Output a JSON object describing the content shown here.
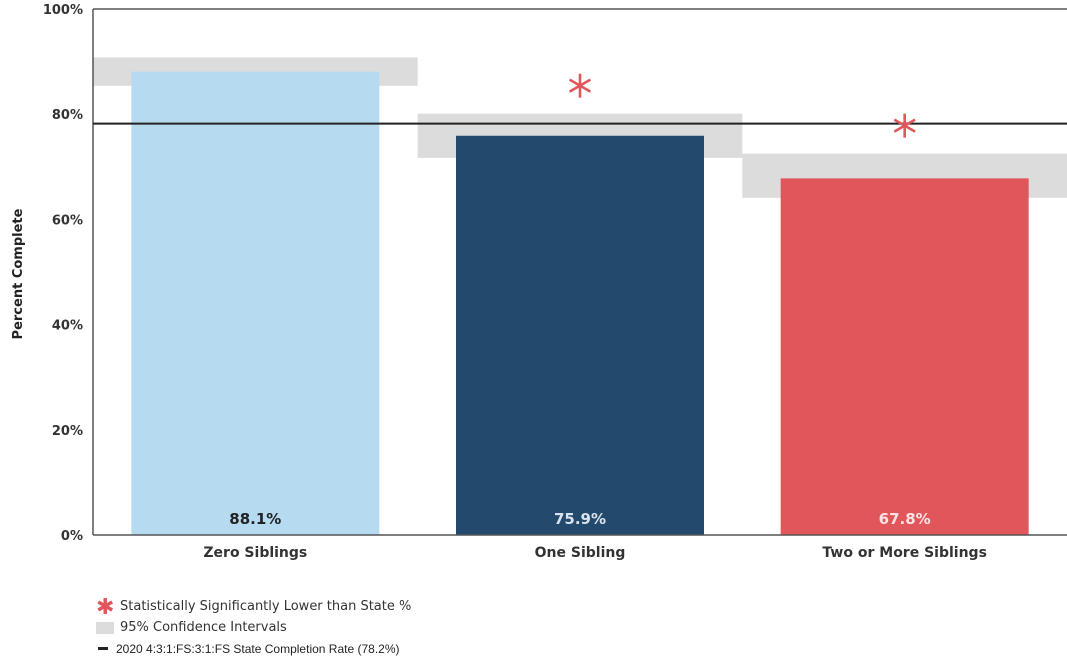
{
  "chart_data": {
    "type": "bar",
    "title": "",
    "xlabel": "",
    "ylabel": "Percent Complete",
    "ylim": [
      0,
      100
    ],
    "yticks": [
      "0%",
      "20%",
      "40%",
      "60%",
      "80%",
      "100%"
    ],
    "categories": [
      "Zero Siblings",
      "One Sibling",
      "Two or More Siblings"
    ],
    "values": [
      88.1,
      75.9,
      67.8
    ],
    "value_labels": [
      "88.1%",
      "75.9%",
      "67.8%"
    ],
    "colors": [
      "#b6dbf0",
      "#234a6c",
      "#e0565b"
    ],
    "label_colors": [
      "#222222",
      "#d9e3ee",
      "#fbe3e3"
    ],
    "confidence_intervals": [
      [
        85.4,
        90.8
      ],
      [
        71.7,
        80.1
      ],
      [
        64.1,
        72.5
      ]
    ],
    "significant_lower": [
      false,
      true,
      true
    ],
    "reference_line": {
      "value": 78.2
    },
    "grid": false
  },
  "legend": {
    "significant": "Statistically Significantly Lower than State %",
    "ci": "95% Confidence Intervals",
    "reference": "2020 4:3:1:FS:3:1:FS State Completion Rate (78.2%)"
  },
  "colors": {
    "ci_band": "#dcdcdc",
    "star": "#e0565b",
    "reference_line": "#222222"
  }
}
